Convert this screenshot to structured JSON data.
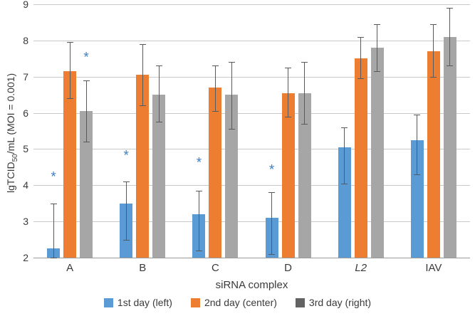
{
  "chart_data": {
    "type": "bar",
    "title": "",
    "xlabel": "siRNA complex",
    "ylabel": {
      "prefix": "lgTCID",
      "sub": "50",
      "suffix": "/mL (MOI = 0.001)"
    },
    "ylim": [
      2,
      9
    ],
    "yticks": [
      2,
      3,
      4,
      5,
      6,
      7,
      8,
      9
    ],
    "grid": true,
    "legend_position": "bottom",
    "categories": [
      {
        "label": "A",
        "italic": false
      },
      {
        "label": "B",
        "italic": false
      },
      {
        "label": "C",
        "italic": false
      },
      {
        "label": "D",
        "italic": false
      },
      {
        "label": "L2",
        "italic": true
      },
      {
        "label": "IAV",
        "italic": false
      }
    ],
    "series": [
      {
        "name": "1st day (left)",
        "color": "#5B9BD5",
        "legend_swatch": "#5B9BD5",
        "values": [
          2.25,
          3.5,
          3.2,
          3.1,
          5.05,
          5.25
        ],
        "error_low": [
          2.0,
          2.5,
          2.2,
          2.1,
          4.05,
          4.3
        ],
        "error_high": [
          3.5,
          4.1,
          3.85,
          3.8,
          5.6,
          5.95
        ]
      },
      {
        "name": "2nd day (center)",
        "color": "#ED7D31",
        "legend_swatch": "#ED7D31",
        "values": [
          7.15,
          7.05,
          6.7,
          6.55,
          7.5,
          7.7
        ],
        "error_low": [
          6.4,
          6.2,
          6.05,
          5.9,
          6.95,
          7.0
        ],
        "error_high": [
          7.95,
          7.9,
          7.3,
          7.25,
          8.1,
          8.45
        ]
      },
      {
        "name": "3rd day (right)",
        "color": "#A6A6A6",
        "legend_swatch": "#636363",
        "values": [
          6.05,
          6.5,
          6.5,
          6.55,
          7.8,
          8.1
        ],
        "error_low": [
          5.2,
          5.75,
          5.55,
          5.7,
          7.15,
          7.3
        ],
        "error_high": [
          6.9,
          7.3,
          7.4,
          7.4,
          8.45,
          8.9
        ]
      }
    ],
    "annotations": [
      {
        "symbol": "*",
        "group_index": 0,
        "series_index": 0,
        "y": 4.3
      },
      {
        "symbol": "*",
        "group_index": 0,
        "series_index": 2,
        "y": 7.6
      },
      {
        "symbol": "*",
        "group_index": 1,
        "series_index": 0,
        "y": 4.9
      },
      {
        "symbol": "*",
        "group_index": 2,
        "series_index": 0,
        "y": 4.7
      },
      {
        "symbol": "*",
        "group_index": 3,
        "series_index": 0,
        "y": 4.5
      }
    ],
    "colors": {
      "gridline": "#C9C9C9",
      "axis_line": "#9A9A9A",
      "error_bar": "#595959",
      "annotation": "#3E7EC1",
      "text": "#3A3A3A",
      "background": "#FFFFFF"
    }
  }
}
